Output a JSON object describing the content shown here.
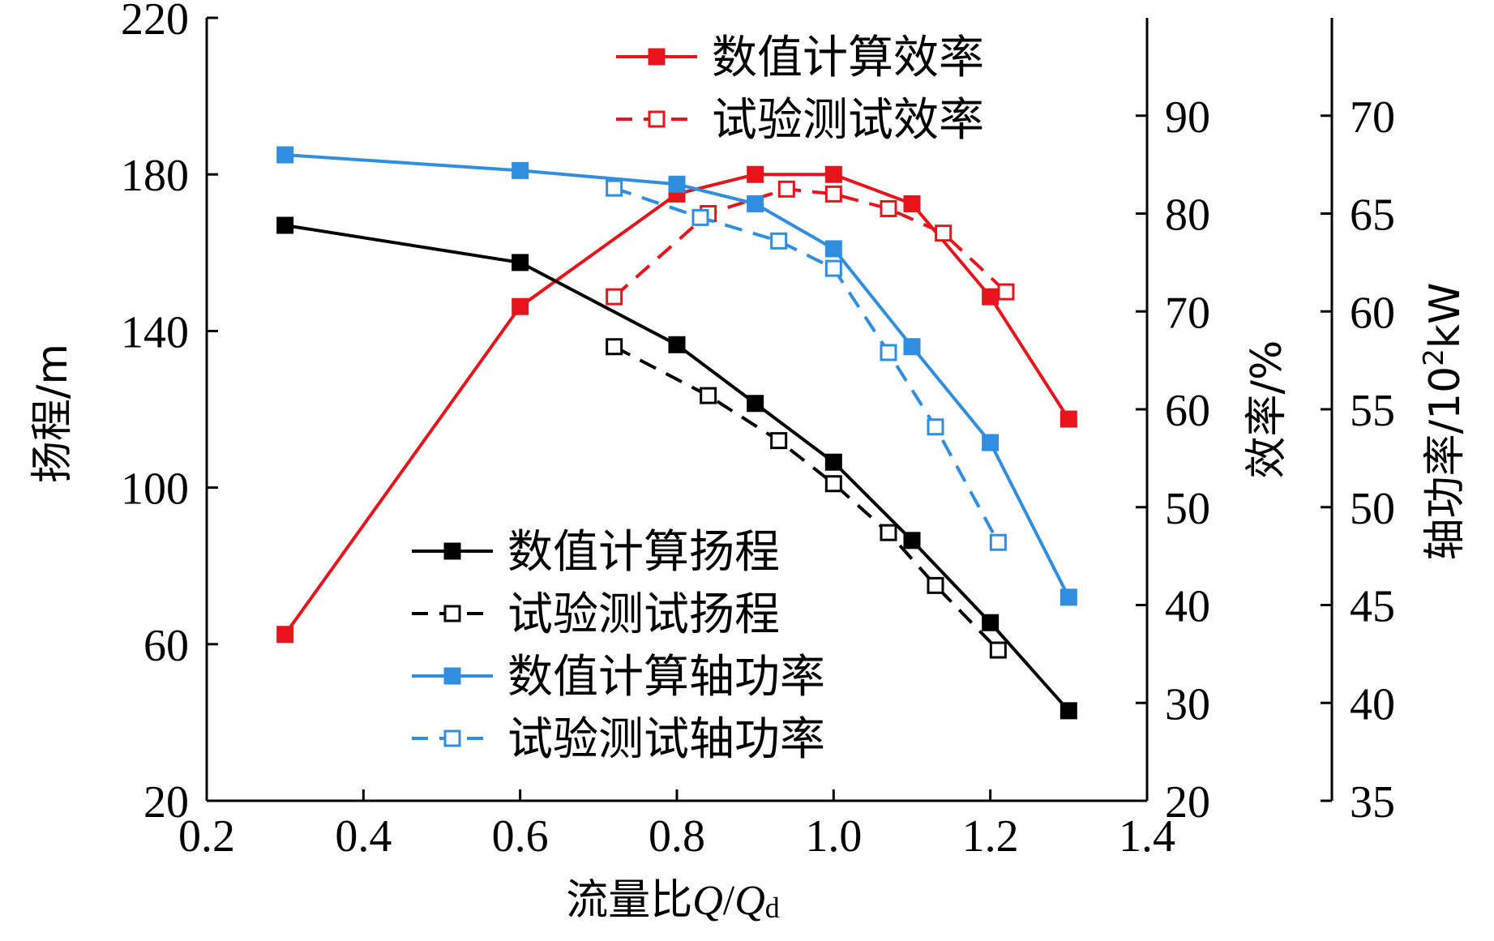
{
  "chart_data": {
    "type": "line",
    "xlabel_prefix": "流量比",
    "xlabel_q": "Q",
    "xlabel_slash": "/",
    "xlabel_qd": "Q",
    "xlabel_sub": "d",
    "x_axis": {
      "min": 0.2,
      "max": 1.4,
      "ticks": [
        "0.2",
        "0.4",
        "0.6",
        "0.8",
        "1.0",
        "1.2",
        "1.4"
      ]
    },
    "left_axis": {
      "label": "扬程/m",
      "min": 20,
      "max": 220,
      "ticks": [
        "20",
        "60",
        "100",
        "140",
        "180",
        "220"
      ]
    },
    "eff_axis": {
      "label": "效率/%",
      "min": 20,
      "max": 100,
      "ticks": [
        "20",
        "30",
        "40",
        "50",
        "60",
        "70",
        "80",
        "90"
      ]
    },
    "power_axis": {
      "label_prefix": "轴功率/10",
      "label_sup": "2",
      "label_suffix": "kW",
      "min": 35,
      "max": 75,
      "ticks": [
        "35",
        "40",
        "45",
        "50",
        "55",
        "60",
        "65",
        "70"
      ]
    },
    "series": [
      {
        "name": "数值计算效率",
        "axis": "eff",
        "color": "#e8141c",
        "dashed": false,
        "marker": "filled",
        "x": [
          0.3,
          0.6,
          0.8,
          0.9,
          1.0,
          1.1,
          1.2,
          1.3
        ],
        "y": [
          37,
          70.5,
          82,
          84,
          84,
          81,
          71.5,
          59
        ]
      },
      {
        "name": "试验测试效率",
        "axis": "eff",
        "color": "#e8141c",
        "dashed": true,
        "marker": "hollow",
        "x": [
          0.72,
          0.84,
          0.94,
          1.0,
          1.07,
          1.14,
          1.22
        ],
        "y": [
          71.5,
          80,
          82.5,
          82,
          80.5,
          78,
          72
        ]
      },
      {
        "name": "数值计算扬程",
        "axis": "head",
        "color": "#000000",
        "dashed": false,
        "marker": "filled",
        "x": [
          0.3,
          0.6,
          0.8,
          0.9,
          1.0,
          1.1,
          1.2,
          1.3
        ],
        "y": [
          167,
          157.5,
          136.5,
          121.5,
          106.5,
          86.5,
          65.5,
          43
        ]
      },
      {
        "name": "试验测试扬程",
        "axis": "head",
        "color": "#000000",
        "dashed": true,
        "marker": "hollow",
        "x": [
          0.72,
          0.84,
          0.93,
          1.0,
          1.07,
          1.13,
          1.21
        ],
        "y": [
          136,
          123.5,
          112,
          101,
          88.5,
          75,
          58.5
        ]
      },
      {
        "name": "数值计算轴功率",
        "axis": "power",
        "color": "#2f8ee0",
        "dashed": false,
        "marker": "filled",
        "x": [
          0.3,
          0.6,
          0.8,
          0.9,
          1.0,
          1.1,
          1.2,
          1.3
        ],
        "y": [
          68,
          67.2,
          66.5,
          65.5,
          63.2,
          58.2,
          53.3,
          45.4
        ]
      },
      {
        "name": "试验测试轴功率",
        "axis": "power",
        "color": "#2f8ee0",
        "dashed": true,
        "marker": "hollow",
        "x": [
          0.72,
          0.83,
          0.93,
          1.0,
          1.07,
          1.13,
          1.21
        ],
        "y": [
          66.3,
          64.8,
          63.6,
          62.2,
          57.9,
          54.1,
          48.2
        ]
      }
    ],
    "legend_top": [
      "数值计算效率",
      "试验测试效率"
    ],
    "legend_bottom": [
      "数值计算扬程",
      "试验测试扬程",
      "数值计算轴功率",
      "试验测试轴功率"
    ]
  }
}
